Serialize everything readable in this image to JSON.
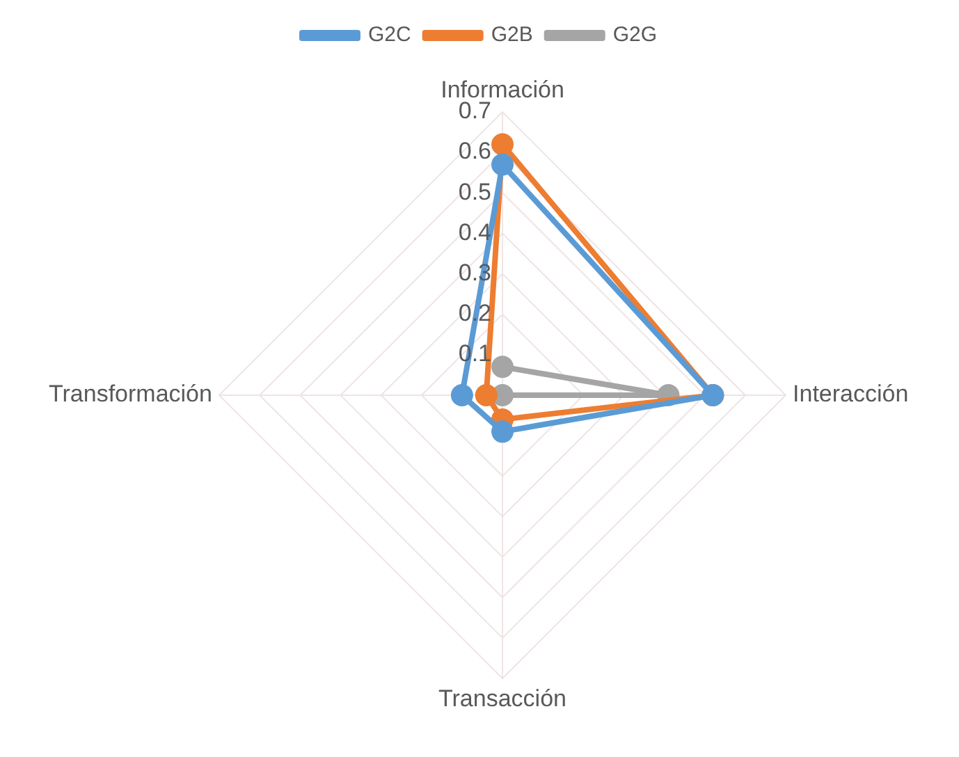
{
  "chart_data": {
    "type": "radar",
    "categories": [
      "Información",
      "Interacción",
      "Transacción",
      "Transformación"
    ],
    "series": [
      {
        "name": "G2C",
        "color": "#5b9bd5",
        "values": [
          0.57,
          0.52,
          0.09,
          0.1
        ]
      },
      {
        "name": "G2B",
        "color": "#ed7d31",
        "values": [
          0.62,
          0.52,
          0.06,
          0.04
        ]
      },
      {
        "name": "G2G",
        "color": "#a5a5a5",
        "values": [
          0.07,
          0.41,
          0.0,
          null
        ]
      }
    ],
    "ylim": [
      0,
      0.7
    ],
    "yticks": [
      0.1,
      0.2,
      0.3,
      0.4,
      0.5,
      0.6,
      0.7
    ],
    "grid": true,
    "legend": "top",
    "marker": "circle",
    "line_style": "solid"
  }
}
